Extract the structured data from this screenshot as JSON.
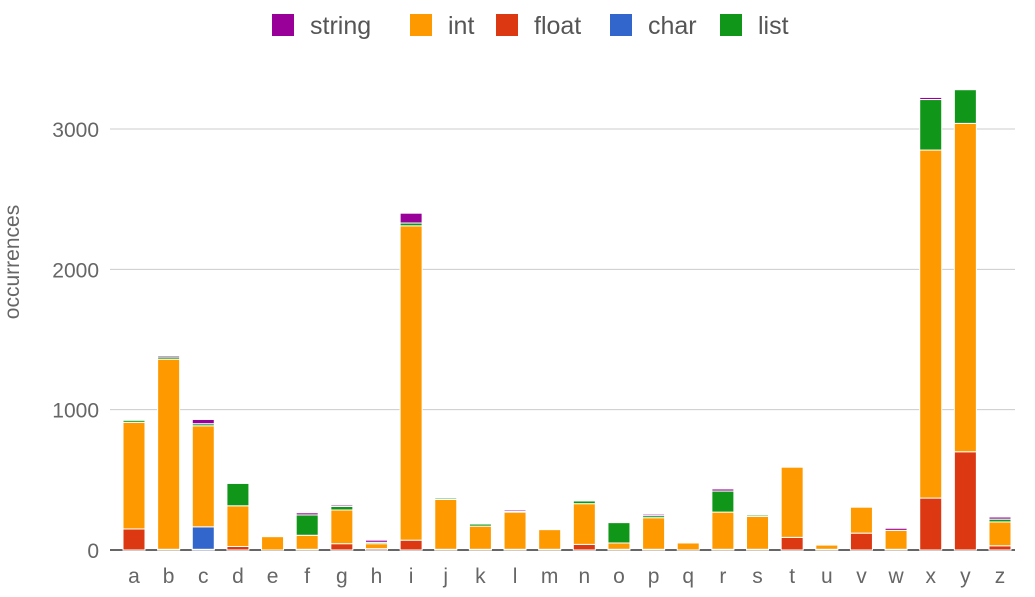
{
  "chart_data": {
    "type": "bar",
    "stacked": true,
    "title": "",
    "xlabel": "",
    "ylabel": "occurrences",
    "ylim": [
      0,
      3000
    ],
    "yticks": [
      0,
      1000,
      2000,
      3000
    ],
    "grid": true,
    "legend_position": "top",
    "categories": [
      "a",
      "b",
      "c",
      "d",
      "e",
      "f",
      "g",
      "h",
      "i",
      "j",
      "k",
      "l",
      "m",
      "n",
      "o",
      "p",
      "q",
      "r",
      "s",
      "t",
      "u",
      "v",
      "w",
      "x",
      "y",
      "z"
    ],
    "series": [
      {
        "name": "float",
        "color": "#dc3912",
        "values": [
          150,
          5,
          5,
          25,
          0,
          5,
          45,
          10,
          70,
          5,
          5,
          5,
          5,
          40,
          5,
          5,
          0,
          5,
          5,
          90,
          5,
          120,
          5,
          370,
          700,
          30
        ]
      },
      {
        "name": "char",
        "color": "#3366cc",
        "values": [
          0,
          0,
          160,
          0,
          0,
          0,
          0,
          0,
          0,
          0,
          0,
          0,
          0,
          0,
          0,
          0,
          0,
          0,
          0,
          0,
          0,
          0,
          0,
          0,
          0,
          0
        ]
      },
      {
        "name": "int",
        "color": "#ff9900",
        "values": [
          760,
          1355,
          720,
          290,
          95,
          100,
          240,
          35,
          2240,
          355,
          165,
          265,
          140,
          290,
          45,
          225,
          50,
          265,
          235,
          500,
          30,
          185,
          135,
          2480,
          2340,
          170
        ]
      },
      {
        "name": "list",
        "color": "#109618",
        "values": [
          15,
          15,
          15,
          160,
          0,
          145,
          25,
          10,
          20,
          10,
          15,
          5,
          0,
          20,
          145,
          15,
          0,
          150,
          10,
          0,
          0,
          0,
          0,
          360,
          240,
          20
        ]
      },
      {
        "name": "string",
        "color": "#990099",
        "values": [
          5,
          10,
          30,
          5,
          0,
          15,
          10,
          15,
          70,
          5,
          0,
          10,
          0,
          5,
          0,
          10,
          0,
          15,
          5,
          0,
          0,
          0,
          15,
          15,
          0,
          15
        ]
      }
    ],
    "legend_order": [
      "string",
      "int",
      "float",
      "char",
      "list"
    ]
  }
}
